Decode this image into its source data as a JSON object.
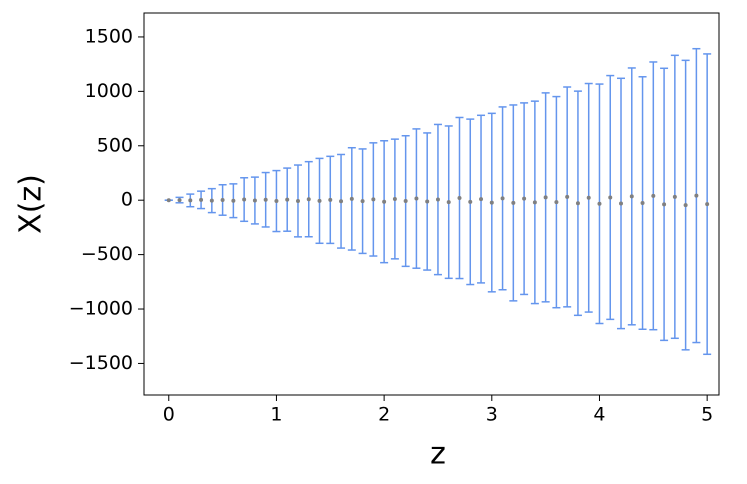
{
  "chart_data": {
    "type": "errorbar",
    "x_label": "z",
    "y_label": "X(z)",
    "x": [
      0.0,
      0.1,
      0.2,
      0.3,
      0.4,
      0.5,
      0.6,
      0.7,
      0.8,
      0.9,
      1.0,
      1.1,
      1.2,
      1.3,
      1.4,
      1.5,
      1.6,
      1.7,
      1.8,
      1.9,
      2.0,
      2.1,
      2.2,
      2.3,
      2.4,
      2.5,
      2.6,
      2.7,
      2.8,
      2.9,
      3.0,
      3.1,
      3.2,
      3.3,
      3.4,
      3.5,
      3.6,
      3.7,
      3.8,
      3.9,
      4.0,
      4.1,
      4.2,
      4.3,
      4.4,
      4.5,
      4.6,
      4.7,
      4.8,
      4.9,
      5.0
    ],
    "values": [
      0,
      1,
      -2,
      3,
      -4,
      2,
      -5,
      6,
      -3,
      4,
      -8,
      5,
      -7,
      9,
      -6,
      3,
      -10,
      12,
      -9,
      7,
      -14,
      11,
      -8,
      15,
      -12,
      6,
      -18,
      20,
      -15,
      10,
      -22,
      17,
      -25,
      14,
      -20,
      26,
      -18,
      30,
      -28,
      22,
      -33,
      25,
      -30,
      35,
      -26,
      40,
      -38,
      31,
      -45,
      42,
      -36
    ],
    "errors": [
      0,
      25,
      58,
      80,
      110,
      140,
      155,
      200,
      215,
      250,
      280,
      290,
      330,
      345,
      390,
      400,
      430,
      470,
      480,
      520,
      560,
      550,
      600,
      640,
      630,
      690,
      700,
      740,
      760,
      770,
      820,
      840,
      900,
      880,
      930,
      960,
      970,
      1010,
      1030,
      1050,
      1100,
      1120,
      1150,
      1180,
      1160,
      1230,
      1250,
      1300,
      1330,
      1350,
      1380
    ],
    "point_color": "#808080",
    "error_color": "#6495ed",
    "xlim": [
      -0.23,
      5.11
    ],
    "ylim": [
      -1790,
      1720
    ],
    "xticks": [
      0,
      1,
      2,
      3,
      4,
      5
    ],
    "yticks": [
      {
        "value": -1500,
        "label": "−1500"
      },
      {
        "value": -1000,
        "label": "−1000"
      },
      {
        "value": -500,
        "label": "−500"
      },
      0,
      500,
      1000,
      1500
    ]
  }
}
